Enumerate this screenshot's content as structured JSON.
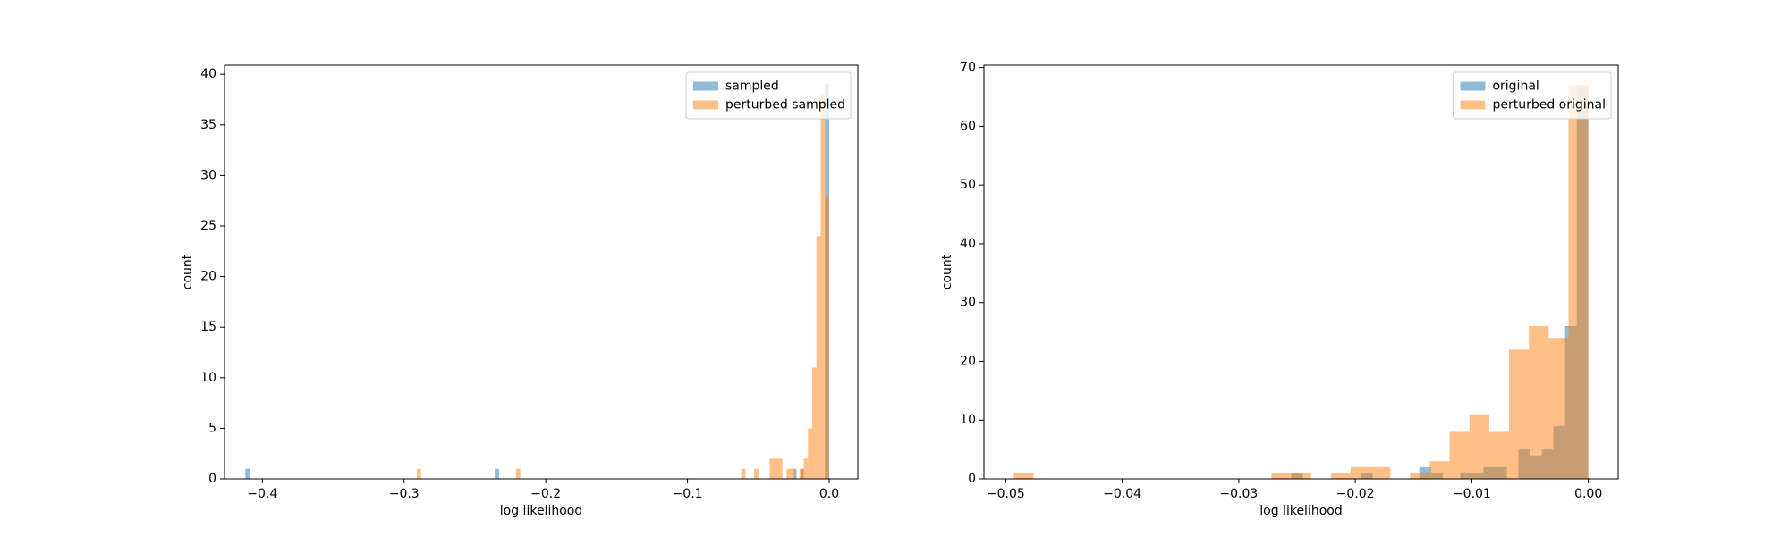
{
  "chart_data": [
    {
      "type": "histogram",
      "xlabel": "log likelihood",
      "ylabel": "count",
      "xlim": [
        -0.4267,
        0.0202
      ],
      "ylim": [
        0,
        40.9
      ],
      "xticks": [
        {
          "value": -0.4,
          "label": "−0.4"
        },
        {
          "value": -0.3,
          "label": "−0.3"
        },
        {
          "value": -0.2,
          "label": "−0.2"
        },
        {
          "value": -0.1,
          "label": "−0.1"
        },
        {
          "value": 0,
          "label": "0.0"
        }
      ],
      "yticks": [
        0,
        5,
        10,
        15,
        20,
        25,
        30,
        35,
        40
      ],
      "opacity": 0.5,
      "legend": "upper right",
      "series": [
        {
          "name": "sampled",
          "color": "#1f77b4",
          "bins": [
            -0.412,
            -0.409,
            -0.236,
            -0.233,
            -0.025,
            -0.023,
            -0.02,
            -0.018,
            -0.003,
            0
          ],
          "values": [
            1,
            0,
            1,
            0,
            1,
            0,
            1,
            0,
            39
          ]
        },
        {
          "name": "perturbed sampled",
          "color": "#ff7f0e",
          "bins": [
            -0.291,
            -0.288,
            -0.221,
            -0.218,
            -0.062,
            -0.059,
            -0.053,
            -0.05,
            -0.042,
            -0.039,
            -0.036,
            -0.033,
            -0.03,
            -0.027,
            -0.024,
            -0.021,
            -0.018,
            -0.015,
            -0.012,
            -0.009,
            -0.006,
            -0.003,
            0
          ],
          "values": [
            1,
            0,
            1,
            0,
            1,
            0,
            1,
            0,
            2,
            2,
            2,
            0,
            1,
            1,
            0,
            1,
            2,
            5,
            11,
            24,
            38,
            28
          ]
        }
      ]
    },
    {
      "type": "histogram",
      "xlabel": "log likelihood",
      "ylabel": "count",
      "xlim": [
        -0.05187,
        0.00256
      ],
      "ylim": [
        0,
        70.4
      ],
      "xticks": [
        {
          "value": -0.05,
          "label": "−0.05"
        },
        {
          "value": -0.04,
          "label": "−0.04"
        },
        {
          "value": -0.03,
          "label": "−0.03"
        },
        {
          "value": -0.02,
          "label": "−0.02"
        },
        {
          "value": -0.01,
          "label": "−0.01"
        },
        {
          "value": 0,
          "label": "0.00"
        }
      ],
      "yticks": [
        0,
        10,
        20,
        30,
        40,
        50,
        60,
        70
      ],
      "opacity": 0.5,
      "legend": "upper right",
      "series": [
        {
          "name": "original",
          "color": "#1f77b4",
          "bins": [
            -0.0255,
            -0.0245,
            -0.0195,
            -0.0185,
            -0.0145,
            -0.0135,
            -0.0125,
            -0.011,
            -0.01,
            -0.009,
            -0.008,
            -0.007,
            -0.006,
            -0.005,
            -0.004,
            -0.003,
            -0.002,
            -0.001,
            0
          ],
          "values": [
            1,
            0,
            1,
            0,
            2,
            1,
            0,
            1,
            1,
            2,
            2,
            0,
            5,
            4,
            5,
            9,
            26,
            67
          ]
        },
        {
          "name": "perturbed original",
          "color": "#ff7f0e",
          "bins": [
            -0.0493,
            -0.0476,
            -0.0459,
            -0.0442,
            -0.0425,
            -0.0408,
            -0.0391,
            -0.0374,
            -0.0357,
            -0.034,
            -0.0323,
            -0.0306,
            -0.0289,
            -0.0272,
            -0.0255,
            -0.0238,
            -0.0221,
            -0.0204,
            -0.0187,
            -0.017,
            -0.0153,
            -0.0136,
            -0.0119,
            -0.0102,
            -0.0085,
            -0.0068,
            -0.0051,
            -0.0034,
            -0.0017,
            0
          ],
          "values": [
            1,
            0,
            0,
            0,
            0,
            0,
            0,
            0,
            0,
            0,
            0,
            0,
            0,
            1,
            1,
            0,
            1,
            2,
            2,
            0,
            1,
            3,
            8,
            11,
            8,
            22,
            26,
            24,
            67
          ]
        }
      ]
    }
  ]
}
